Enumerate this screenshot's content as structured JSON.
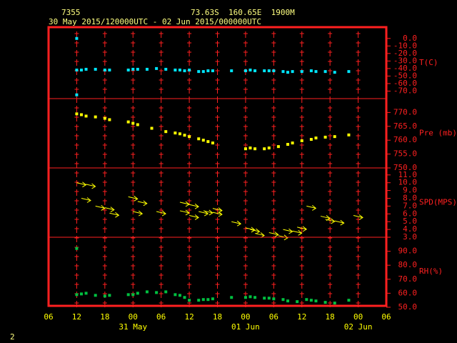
{
  "header": {
    "station": "7355",
    "location": "73.63S  160.65E  1900M",
    "period": "30 May 2015/120000UTC - 02 Jun 2015/000000UTC",
    "page": "2"
  },
  "chart_data": [
    {
      "type": "scatter",
      "label": "T(C)",
      "color": "#00e5ff",
      "x": [
        6,
        6,
        6,
        7,
        8,
        10,
        12,
        13,
        17,
        18,
        19,
        21,
        23,
        25,
        27,
        28,
        29,
        30,
        32,
        33,
        34,
        35,
        39,
        42,
        43,
        44,
        46,
        47,
        48,
        50,
        51,
        52,
        54,
        56,
        57,
        59,
        61,
        64
      ],
      "values": [
        0,
        -75,
        -42,
        -42,
        -41,
        -41,
        -42,
        -42,
        -42,
        -41,
        -41,
        -41,
        -40,
        -41,
        -42,
        -42,
        -43,
        -42,
        -44,
        -44,
        -43,
        -43,
        -43,
        -43,
        -42,
        -43,
        -43,
        -43,
        -43,
        -44,
        -45,
        -44,
        -44,
        -43,
        -44,
        -44,
        -45,
        -44
      ],
      "ylim": [
        -80,
        15
      ],
      "yticks": [
        {
          "value": 0,
          "label": "0.0"
        },
        {
          "value": -10,
          "label": "-10.0"
        },
        {
          "value": -20,
          "label": "-20.0"
        },
        {
          "value": -30,
          "label": "-30.0"
        },
        {
          "value": -40,
          "label": "-40.0"
        },
        {
          "value": -50,
          "label": "-50.0"
        },
        {
          "value": -60,
          "label": "-60.0"
        },
        {
          "value": -70,
          "label": "-70.0"
        }
      ]
    },
    {
      "type": "scatter",
      "label": "Pre (mb)",
      "color": "#ffff00",
      "x": [
        6,
        7,
        8,
        10,
        12,
        13,
        17,
        18,
        19,
        22,
        25,
        27,
        28,
        29,
        30,
        32,
        33,
        34,
        35,
        42,
        43,
        44,
        46,
        47,
        49,
        51,
        52,
        54,
        56,
        57,
        59,
        61,
        64
      ],
      "values": [
        769.5,
        769.2,
        768.7,
        768.4,
        767.9,
        767.4,
        766.6,
        766.1,
        765.6,
        764.3,
        763.1,
        762.6,
        762.3,
        761.8,
        761.3,
        760.5,
        760,
        759.5,
        759,
        756.9,
        757.2,
        756.9,
        756.9,
        757.2,
        757.7,
        758.5,
        759,
        759.8,
        760.3,
        760.8,
        761.1,
        761.3,
        761.9
      ],
      "ylim": [
        750,
        775
      ],
      "yticks": [
        {
          "value": 770,
          "label": "770.0"
        },
        {
          "value": 765,
          "label": "765.0"
        },
        {
          "value": 760,
          "label": "760.0"
        },
        {
          "value": 755,
          "label": "755.0"
        },
        {
          "value": 750,
          "label": "750.0"
        }
      ]
    },
    {
      "type": "arrow",
      "label": "SPD(MPS)",
      "color": "#ffff00",
      "x": [
        6,
        8,
        7,
        10,
        12,
        13,
        17,
        18,
        19,
        23,
        28,
        28,
        30,
        30,
        32,
        33,
        35,
        35,
        39,
        42,
        43,
        44,
        47,
        49,
        50,
        52,
        53,
        55,
        58,
        59,
        61,
        65
      ],
      "values": [
        10,
        9.8,
        8,
        7,
        6.8,
        6.1,
        8.2,
        6.3,
        7.6,
        6.3,
        6.4,
        7.5,
        7.2,
        5.8,
        6.3,
        6.4,
        6.7,
        6.2,
        5,
        4.2,
        4,
        3.5,
        3.6,
        3.2,
        4,
        3.8,
        4.3,
        7,
        5.7,
        5.3,
        5.1,
        5.8
      ],
      "ylim": [
        3,
        11.9
      ],
      "yticks": [
        {
          "value": 11,
          "label": "11.0"
        },
        {
          "value": 10,
          "label": "10.0"
        },
        {
          "value": 9,
          "label": "9.0"
        },
        {
          "value": 8,
          "label": "8.0"
        },
        {
          "value": 7,
          "label": "7.0"
        },
        {
          "value": 6,
          "label": "6.0"
        },
        {
          "value": 5,
          "label": "5.0"
        },
        {
          "value": 4,
          "label": "4.0"
        },
        {
          "value": 3,
          "label": "3.0"
        }
      ]
    },
    {
      "type": "scatter",
      "label": "RH(%)",
      "color": "#00c040",
      "x": [
        6,
        6,
        7,
        8,
        10,
        12,
        13,
        17,
        18,
        19,
        21,
        23,
        25,
        27,
        28,
        29,
        30,
        32,
        33,
        34,
        35,
        39,
        42,
        43,
        44,
        46,
        47,
        48,
        50,
        51,
        53,
        55,
        56,
        57,
        59,
        61,
        64
      ],
      "values": [
        92,
        59,
        59.5,
        60,
        58.5,
        58,
        58.5,
        59,
        59,
        60,
        61,
        60.5,
        61,
        59,
        58.5,
        57,
        55,
        55,
        55.5,
        55.5,
        56,
        57,
        57,
        57.5,
        57,
        56.5,
        56.5,
        56,
        55.5,
        54.5,
        54,
        55.5,
        55,
        54.5,
        53.5,
        53,
        55
      ],
      "ylim": [
        51,
        100
      ],
      "yticks": [
        {
          "value": 90,
          "label": "90.0"
        },
        {
          "value": 80,
          "label": "80.0"
        },
        {
          "value": 70,
          "label": "70.0"
        },
        {
          "value": 60,
          "label": "60.0"
        },
        {
          "value": 50,
          "label": "50.0"
        }
      ],
      "xlim": [
        0,
        72
      ],
      "xticks": [
        {
          "value": 0,
          "label": "06"
        },
        {
          "value": 6,
          "label": "12"
        },
        {
          "value": 12,
          "label": "18"
        },
        {
          "value": 18,
          "label": "00"
        },
        {
          "value": 24,
          "label": "06"
        },
        {
          "value": 30,
          "label": "12"
        },
        {
          "value": 36,
          "label": "18"
        },
        {
          "value": 42,
          "label": "00"
        },
        {
          "value": 48,
          "label": "06"
        },
        {
          "value": 54,
          "label": "12"
        },
        {
          "value": 60,
          "label": "18"
        },
        {
          "value": 66,
          "label": "00"
        },
        {
          "value": 72,
          "label": "06"
        }
      ],
      "x_date_labels": [
        {
          "value": 18,
          "label": "31 May"
        },
        {
          "value": 42,
          "label": "01 Jun"
        },
        {
          "value": 66,
          "label": "02 Jun"
        }
      ]
    }
  ]
}
